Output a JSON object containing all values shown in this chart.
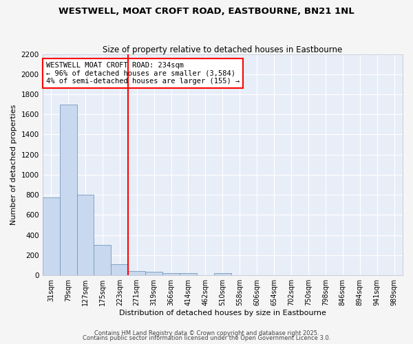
{
  "title1": "WESTWELL, MOAT CROFT ROAD, EASTBOURNE, BN21 1NL",
  "title2": "Size of property relative to detached houses in Eastbourne",
  "xlabel": "Distribution of detached houses by size in Eastbourne",
  "ylabel": "Number of detached properties",
  "categories": [
    "31sqm",
    "79sqm",
    "127sqm",
    "175sqm",
    "223sqm",
    "271sqm",
    "319sqm",
    "366sqm",
    "414sqm",
    "462sqm",
    "510sqm",
    "558sqm",
    "606sqm",
    "654sqm",
    "702sqm",
    "750sqm",
    "798sqm",
    "846sqm",
    "894sqm",
    "941sqm",
    "989sqm"
  ],
  "values": [
    775,
    1700,
    800,
    300,
    110,
    40,
    35,
    25,
    20,
    0,
    20,
    0,
    0,
    0,
    0,
    0,
    0,
    0,
    0,
    0,
    0
  ],
  "bar_color": "#c8d8ee",
  "bar_edge_color": "#7799bb",
  "vline_color": "red",
  "annotation_text": "WESTWELL MOAT CROFT ROAD: 234sqm\n← 96% of detached houses are smaller (3,584)\n4% of semi-detached houses are larger (155) →",
  "annotation_box_color": "white",
  "annotation_box_edge": "red",
  "ylim": [
    0,
    2200
  ],
  "yticks": [
    0,
    200,
    400,
    600,
    800,
    1000,
    1200,
    1400,
    1600,
    1800,
    2000,
    2200
  ],
  "bg_color": "#e8eef8",
  "grid_color": "white",
  "footer1": "Contains HM Land Registry data © Crown copyright and database right 2025.",
  "footer2": "Contains public sector information licensed under the Open Government Licence 3.0."
}
